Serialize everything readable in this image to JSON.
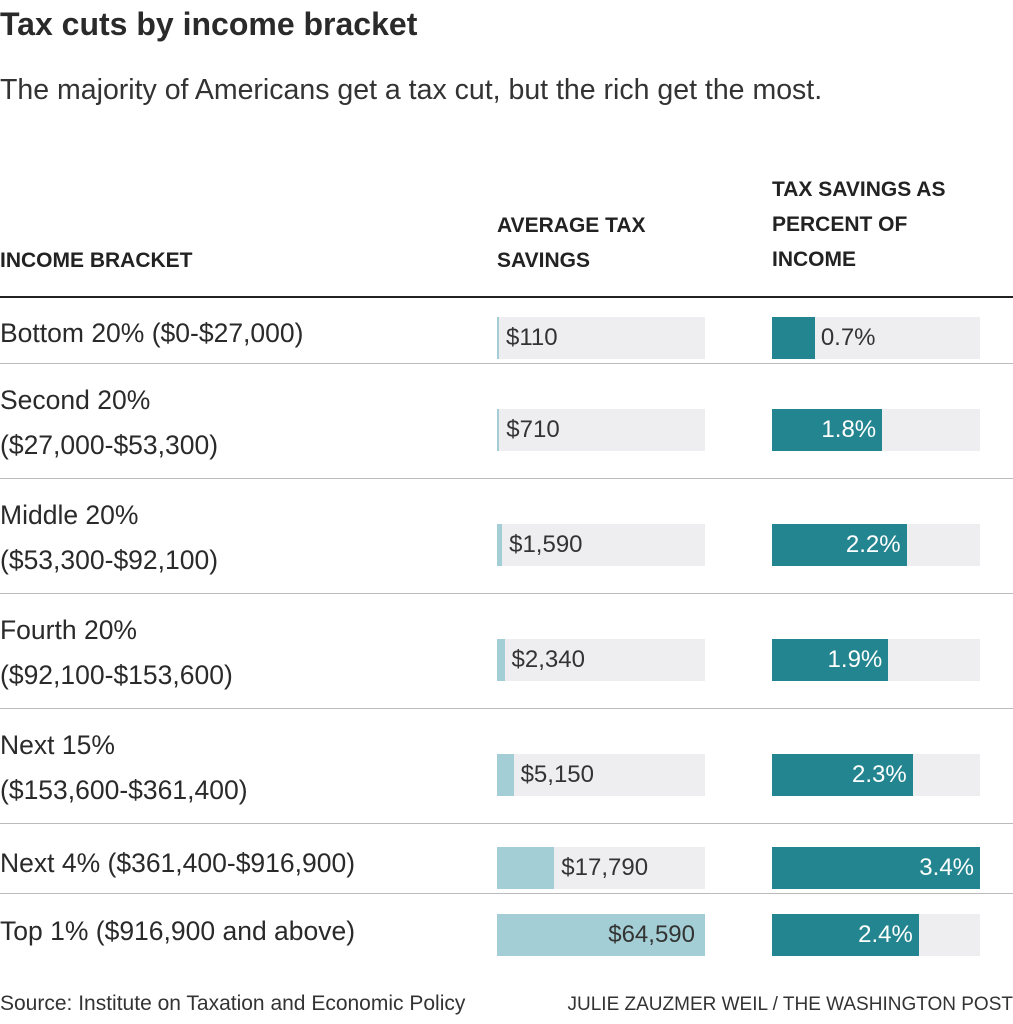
{
  "title": "Tax cuts by income bracket",
  "subtitle": "The majority of Americans get a tax cut, but the rich get the most.",
  "columns": {
    "bracket": "INCOME BRACKET",
    "savings": [
      "AVERAGE TAX",
      "SAVINGS"
    ],
    "percent": [
      "TAX SAVINGS AS",
      "PERCENT OF",
      "INCOME"
    ]
  },
  "colors": {
    "savings_bar": "#a3ced5",
    "percent_bar": "#23858f",
    "track": "#eeeef0"
  },
  "chart_data": {
    "type": "table",
    "categories": [
      [
        "Bottom 20% ($0-$27,000)"
      ],
      [
        "Second 20%",
        "($27,000-$53,300)"
      ],
      [
        "Middle 20%",
        "($53,300-$92,100)"
      ],
      [
        "Fourth 20%",
        "($92,100-$153,600)"
      ],
      [
        "Next 15%",
        "($153,600-$361,400)"
      ],
      [
        "Next 4% ($361,400-$916,900)"
      ],
      [
        "Top 1% ($916,900 and above)"
      ]
    ],
    "series": [
      {
        "values": [
          110,
          710,
          1590,
          2340,
          5150,
          17790,
          64590
        ],
        "labels": [
          "$110",
          "$710",
          "$1,590",
          "$2,340",
          "$5,150",
          "$17,790",
          "$64,590"
        ],
        "max": 64590
      },
      {
        "values": [
          0.7,
          1.8,
          2.2,
          1.9,
          2.3,
          3.4,
          2.4
        ],
        "labels": [
          "0.7%",
          "1.8%",
          "2.2%",
          "1.9%",
          "2.3%",
          "3.4%",
          "2.4%"
        ],
        "max": 3.4
      }
    ]
  },
  "footer": {
    "source": "Source: Institute on Taxation and Economic Policy",
    "credit": "Julie Zauzmer Weil / The Washington Post"
  }
}
